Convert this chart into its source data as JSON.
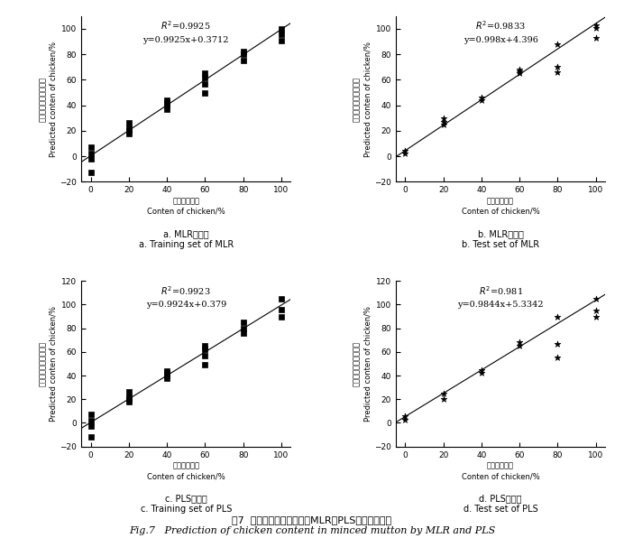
{
  "panels": [
    {
      "label_cn": "a. MLR建模集",
      "label_en": "a. Training set of MLR",
      "r2": "$R^2$=0.9925",
      "eq": "y=0.9925x+0.3712",
      "slope": 0.9925,
      "intercept": 0.3712,
      "xlim": [
        -5,
        105
      ],
      "ylim": [
        -20,
        110
      ],
      "yticks": [
        -20,
        0,
        20,
        40,
        60,
        80,
        100
      ],
      "xticks": [
        0,
        20,
        40,
        60,
        80,
        100
      ],
      "ylabel_cn": "掺入鸡肉比例的预测值",
      "ylabel_en": "Predicted conten of chicken/%",
      "xlabel_cn": "掺入鸡肉比例",
      "xlabel_en": "Conten of chicken/%",
      "data_x": [
        0,
        0,
        0,
        0,
        20,
        20,
        20,
        20,
        40,
        40,
        40,
        40,
        60,
        60,
        60,
        60,
        80,
        80,
        80,
        100,
        100,
        100
      ],
      "data_y": [
        -13,
        -2,
        2,
        7,
        18,
        20,
        22,
        26,
        37,
        40,
        42,
        44,
        50,
        57,
        62,
        65,
        75,
        80,
        82,
        91,
        96,
        100
      ],
      "marker": "s"
    },
    {
      "label_cn": "b. MLR验证集",
      "label_en": "b. Test set of MLR",
      "r2": "$R^2$=0.9833",
      "eq": "y=0.998x+4.396",
      "slope": 0.998,
      "intercept": 4.396,
      "xlim": [
        -5,
        105
      ],
      "ylim": [
        -20,
        110
      ],
      "yticks": [
        -20,
        0,
        20,
        40,
        60,
        80,
        100
      ],
      "xticks": [
        0,
        20,
        40,
        60,
        80,
        100
      ],
      "ylabel_cn": "掺入鸡肉比例的预测值",
      "ylabel_en": "Predicted conten of chicken/%",
      "xlabel_cn": "掺入鸡肉比例",
      "xlabel_en": "Conten of chicken/%",
      "data_x": [
        0,
        0,
        20,
        20,
        20,
        40,
        40,
        60,
        60,
        60,
        80,
        80,
        80,
        100,
        100,
        100
      ],
      "data_y": [
        2,
        4,
        25,
        27,
        30,
        44,
        46,
        65,
        67,
        68,
        66,
        70,
        88,
        93,
        101,
        103
      ],
      "marker": "*"
    },
    {
      "label_cn": "c. PLS建模集",
      "label_en": "c. Training set of PLS",
      "r2": "$R^2$=0.9923",
      "eq": "y=0.9924x+0.379",
      "slope": 0.9924,
      "intercept": 0.379,
      "xlim": [
        -5,
        105
      ],
      "ylim": [
        -20,
        120
      ],
      "yticks": [
        -20,
        0,
        20,
        40,
        60,
        80,
        100,
        120
      ],
      "xticks": [
        0,
        20,
        40,
        60,
        80,
        100
      ],
      "ylabel_cn": "掺入鸡肉比例的预测值",
      "ylabel_en": "Predicted conten of chicken/%",
      "xlabel_cn": "掺入鸡肉比例",
      "xlabel_en": "Conten of chicken/%",
      "data_x": [
        0,
        0,
        0,
        0,
        20,
        20,
        20,
        20,
        40,
        40,
        40,
        40,
        60,
        60,
        60,
        60,
        80,
        80,
        80,
        100,
        100,
        100
      ],
      "data_y": [
        -12,
        -3,
        2,
        7,
        18,
        20,
        22,
        26,
        38,
        40,
        42,
        44,
        49,
        57,
        62,
        65,
        76,
        80,
        85,
        90,
        96,
        105
      ],
      "marker": "s"
    },
    {
      "label_cn": "d. PLS验证集",
      "label_en": "d. Test set of PLS",
      "r2": "$R^2$=0.981",
      "eq": "y=0.9844x+5.3342",
      "slope": 0.9844,
      "intercept": 5.3342,
      "xlim": [
        -5,
        105
      ],
      "ylim": [
        -20,
        120
      ],
      "yticks": [
        -20,
        0,
        20,
        40,
        60,
        80,
        100,
        120
      ],
      "xticks": [
        0,
        20,
        40,
        60,
        80,
        100
      ],
      "ylabel_cn": "掺入鸡肉比例的预测值",
      "ylabel_en": "Predicted conten of chicken/%",
      "xlabel_cn": "掺入鸡肉比例",
      "xlabel_en": "Conten of chicken/%",
      "data_x": [
        0,
        0,
        20,
        20,
        40,
        40,
        60,
        60,
        80,
        80,
        80,
        100,
        100,
        100
      ],
      "data_y": [
        3,
        6,
        20,
        25,
        42,
        45,
        65,
        68,
        55,
        67,
        90,
        90,
        95,
        105
      ],
      "marker": "*"
    }
  ],
  "fig_title_cn": "图7  羊肉中掺入鸡肉含量的MLR和PLS定量预测结果",
  "fig_title_en": "Fig.7   Prediction of chicken content in minced mutton by MLR and PLS",
  "background_color": "#ffffff",
  "line_color": "#000000",
  "marker_color": "#000000"
}
